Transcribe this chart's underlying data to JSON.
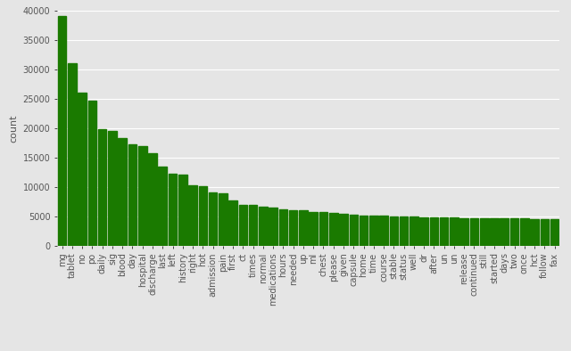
{
  "categories": [
    "mg",
    "tablet",
    "no",
    "po",
    "daily",
    "sig",
    "blood",
    "day",
    "hospital",
    "discharge",
    "last",
    "left",
    "history",
    "right",
    "hot",
    "admission",
    "pain",
    "first",
    "ct",
    "times",
    "normal",
    "medications",
    "hours",
    "needed",
    "up",
    "ml",
    "chest",
    "please",
    "given",
    "capsule",
    "home",
    "time",
    "course",
    "stable",
    "status",
    "well",
    "dr",
    "after",
    "un",
    "un",
    "release",
    "continued",
    "still",
    "started",
    "days",
    "two",
    "once",
    "hct",
    "follow",
    "fax"
  ],
  "values": [
    39000,
    31000,
    26000,
    24700,
    19800,
    19500,
    18300,
    17200,
    17000,
    15700,
    13400,
    12200,
    12100,
    10200,
    10100,
    9000,
    8900,
    7700,
    7000,
    6900,
    6600,
    6500,
    6200,
    6100,
    6000,
    5800,
    5700,
    5600,
    5400,
    5200,
    5100,
    5100,
    5050,
    5000,
    4950,
    4900,
    4850,
    4800,
    4750,
    4750,
    4700,
    4700,
    4700,
    4700,
    4650,
    4600,
    4600,
    4550,
    4500,
    4500
  ],
  "bar_color": "#1a7a00",
  "ylabel": "count",
  "ylim": [
    0,
    40000
  ],
  "yticks": [
    0,
    5000,
    10000,
    15000,
    20000,
    25000,
    30000,
    35000,
    40000
  ],
  "background_color": "#e5e5e5",
  "grid_color": "#ffffff",
  "tick_fontsize": 7,
  "label_fontsize": 8
}
